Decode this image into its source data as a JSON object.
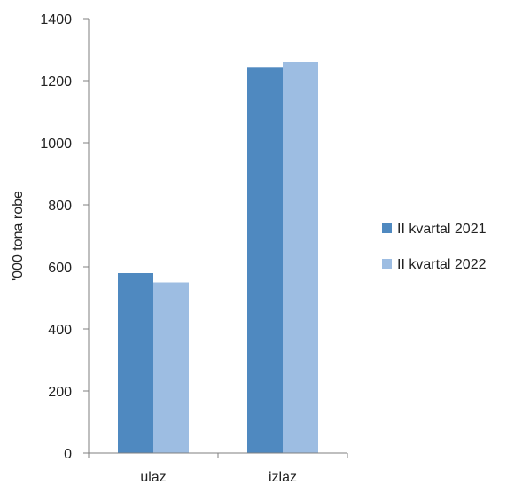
{
  "chart_data": {
    "type": "bar",
    "title": "",
    "xlabel": "",
    "ylabel": "'000 tona robe",
    "categories": [
      "ulaz",
      "izlaz"
    ],
    "series": [
      {
        "name": "II kvartal 2021",
        "values": [
          580,
          1242
        ],
        "color": "#4f89c0"
      },
      {
        "name": "II kvartal 2022",
        "values": [
          550,
          1260
        ],
        "color": "#9dbde2"
      }
    ],
    "ylim": [
      0,
      1400
    ],
    "yticks": [
      0,
      200,
      400,
      600,
      800,
      1000,
      1200,
      1400
    ],
    "grid": false,
    "legend_position": "right"
  }
}
